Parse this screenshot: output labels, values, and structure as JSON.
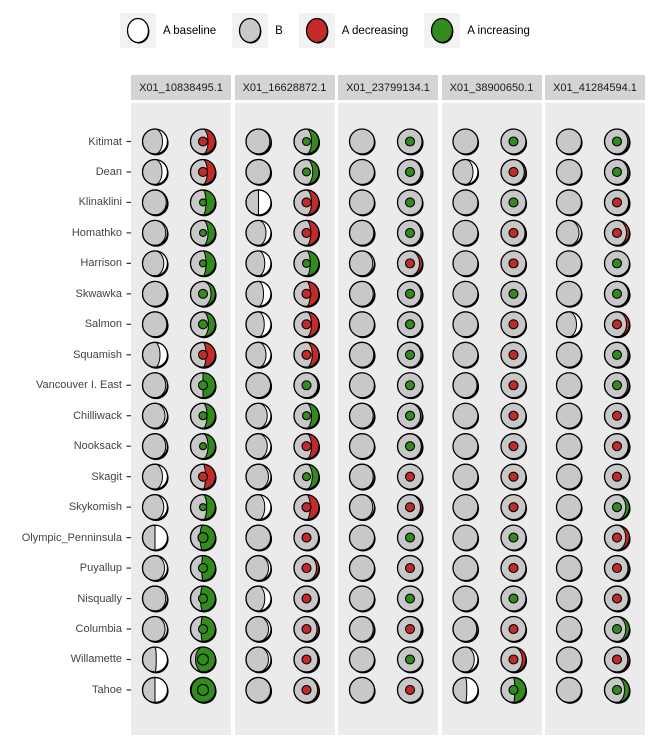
{
  "page": {
    "background": "#FFFFFF"
  },
  "legend": {
    "items": [
      {
        "label": "A baseline",
        "color": "#FFFFFF"
      },
      {
        "label": "B",
        "color": "#C8C8C8"
      },
      {
        "label": "A decreasing",
        "color": "#C32B2B"
      },
      {
        "label": "A increasing",
        "color": "#338A1E"
      }
    ]
  },
  "chart_data": {
    "type": "moon_grid",
    "description": "Faceted moon-chart matrix. Each row (river/region) x facet (locus) shows two moon glyphs: left glyph = proportion B (gray) filled from left over A-baseline (white); right glyph = proportion B (gray) over a colored remainder (red = A decreasing, green = A increasing) with a small center dot colored by direction.",
    "legend_position": "top",
    "facet_labels": [
      "X01_10838495.1",
      "X01_16628872.1",
      "X01_23799134.1",
      "X01_38900650.1",
      "X01_41284594.1"
    ],
    "row_labels": [
      "Kitimat",
      "Dean",
      "Klinaklini",
      "Homathko",
      "Harrison",
      "Skwawka",
      "Salmon",
      "Squamish",
      "Vancouver I. East",
      "Chilliwack",
      "Nooksack",
      "Skagit",
      "Skykomish",
      "Olympic_Penninsula",
      "Puyallup",
      "Nisqually",
      "Columbia",
      "Willamette",
      "Tahoe"
    ],
    "cell_encoding": [
      "gray_fraction_left_glyph",
      "colored_fraction_right_glyph",
      "direction_color (r=decreasing, g=increasing)",
      "center_dot_radius_px"
    ],
    "colors": {
      "baseline": "#FFFFFF",
      "b_gray": "#C8C8C8",
      "decreasing": "#C32B2B",
      "increasing": "#338A1E",
      "panel_bg": "#EBEBEB",
      "strip_bg": "#D4D4D4",
      "outline": "#000000"
    },
    "facets": [
      {
        "label": "X01_10838495.1",
        "cells": [
          [
            0.8,
            0.3,
            "r",
            4.5
          ],
          [
            0.78,
            0.33,
            "r",
            4.5
          ],
          [
            0.95,
            0.38,
            "g",
            3.5
          ],
          [
            0.93,
            0.3,
            "g",
            3.5
          ],
          [
            0.85,
            0.38,
            "g",
            3.5
          ],
          [
            0.97,
            0.18,
            "g",
            4.5
          ],
          [
            0.97,
            0.28,
            "g",
            4.5
          ],
          [
            0.7,
            0.38,
            "r",
            4.5
          ],
          [
            0.93,
            0.5,
            "g",
            4.5
          ],
          [
            0.9,
            0.34,
            "g",
            4.0
          ],
          [
            0.93,
            0.3,
            "g",
            3.5
          ],
          [
            0.8,
            0.4,
            "r",
            4.5
          ],
          [
            0.85,
            0.35,
            "g",
            3.5
          ],
          [
            0.5,
            0.62,
            "g",
            5.0
          ],
          [
            0.88,
            0.55,
            "g",
            4.5
          ],
          [
            0.93,
            0.6,
            "g",
            4.5
          ],
          [
            0.9,
            0.58,
            "g",
            4.5
          ],
          [
            0.55,
            0.8,
            "g",
            5.5
          ],
          [
            0.5,
            0.97,
            "g",
            5.5
          ]
        ]
      },
      {
        "label": "X01_16628872.1",
        "cells": [
          [
            0.95,
            0.3,
            "g",
            4.0
          ],
          [
            0.98,
            0.25,
            "g",
            4.0
          ],
          [
            0.5,
            0.3,
            "r",
            4.5
          ],
          [
            0.8,
            0.33,
            "r",
            4.5
          ],
          [
            0.75,
            0.35,
            "g",
            4.0
          ],
          [
            0.7,
            0.35,
            "r",
            4.5
          ],
          [
            0.73,
            0.3,
            "r",
            4.5
          ],
          [
            0.8,
            0.27,
            "r",
            4.5
          ],
          [
            0.98,
            0.05,
            "g",
            4.5
          ],
          [
            0.85,
            0.3,
            "g",
            4.0
          ],
          [
            0.85,
            0.3,
            "r",
            4.5
          ],
          [
            0.9,
            0.27,
            "g",
            4.0
          ],
          [
            0.75,
            0.35,
            "r",
            4.5
          ],
          [
            0.98,
            0.02,
            "r",
            4.5
          ],
          [
            0.9,
            0.1,
            "r",
            4.5
          ],
          [
            0.75,
            0.02,
            "r",
            4.5
          ],
          [
            0.9,
            0.08,
            "r",
            4.5
          ],
          [
            0.9,
            0.05,
            "r",
            4.5
          ],
          [
            0.98,
            0.06,
            "r",
            4.5
          ]
        ]
      },
      {
        "label": "X01_23799134.1",
        "cells": [
          [
            1.0,
            0.02,
            "g",
            4.5
          ],
          [
            1.0,
            0.06,
            "g",
            4.5
          ],
          [
            1.0,
            0.0,
            "g",
            4.5
          ],
          [
            0.97,
            0.06,
            "g",
            4.5
          ],
          [
            0.93,
            0.12,
            "r",
            4.5
          ],
          [
            0.95,
            0.06,
            "g",
            4.5
          ],
          [
            1.0,
            0.02,
            "g",
            4.5
          ],
          [
            0.97,
            0.06,
            "g",
            4.5
          ],
          [
            1.0,
            0.0,
            "g",
            4.5
          ],
          [
            0.95,
            0.08,
            "g",
            4.5
          ],
          [
            1.0,
            0.05,
            "g",
            4.5
          ],
          [
            0.95,
            0.0,
            "r",
            4.5
          ],
          [
            0.93,
            0.08,
            "r",
            4.5
          ],
          [
            1.0,
            0.0,
            "g",
            4.5
          ],
          [
            1.0,
            0.0,
            "r",
            4.5
          ],
          [
            1.0,
            0.0,
            "g",
            4.5
          ],
          [
            0.95,
            0.05,
            "r",
            4.5
          ],
          [
            1.0,
            0.0,
            "g",
            4.5
          ],
          [
            1.0,
            0.0,
            "r",
            4.5
          ]
        ]
      },
      {
        "label": "X01_38900650.1",
        "cells": [
          [
            1.0,
            0.0,
            "g",
            4.5
          ],
          [
            0.8,
            0.07,
            "r",
            4.5
          ],
          [
            1.0,
            0.0,
            "g",
            4.5
          ],
          [
            1.0,
            0.04,
            "r",
            4.5
          ],
          [
            1.0,
            0.0,
            "r",
            4.5
          ],
          [
            1.0,
            0.0,
            "g",
            4.5
          ],
          [
            1.0,
            0.0,
            "r",
            4.5
          ],
          [
            1.0,
            0.0,
            "r",
            4.5
          ],
          [
            0.96,
            0.0,
            "r",
            4.5
          ],
          [
            1.0,
            0.0,
            "r",
            4.5
          ],
          [
            1.0,
            0.0,
            "r",
            4.5
          ],
          [
            1.0,
            0.0,
            "r",
            4.5
          ],
          [
            1.0,
            0.0,
            "r",
            4.5
          ],
          [
            1.0,
            0.0,
            "g",
            4.5
          ],
          [
            1.0,
            0.0,
            "r",
            4.5
          ],
          [
            1.0,
            0.0,
            "g",
            4.5
          ],
          [
            0.95,
            0.0,
            "r",
            4.5
          ],
          [
            0.85,
            0.15,
            "r",
            4.5
          ],
          [
            0.55,
            0.45,
            "g",
            4.5
          ]
        ]
      },
      {
        "label": "X01_41284594.1",
        "cells": [
          [
            1.0,
            0.07,
            "g",
            4.5
          ],
          [
            1.0,
            0.07,
            "g",
            4.5
          ],
          [
            1.0,
            0.04,
            "r",
            4.5
          ],
          [
            0.9,
            0.12,
            "r",
            4.5
          ],
          [
            1.0,
            0.0,
            "g",
            4.5
          ],
          [
            1.0,
            0.05,
            "g",
            4.5
          ],
          [
            0.8,
            0.12,
            "r",
            4.5
          ],
          [
            1.0,
            0.06,
            "g",
            4.5
          ],
          [
            1.0,
            0.08,
            "g",
            4.5
          ],
          [
            1.0,
            0.05,
            "r",
            4.5
          ],
          [
            1.0,
            0.05,
            "r",
            4.5
          ],
          [
            1.0,
            0.0,
            "r",
            4.5
          ],
          [
            1.0,
            0.15,
            "g",
            4.5
          ],
          [
            1.0,
            0.15,
            "r",
            4.5
          ],
          [
            1.0,
            0.06,
            "r",
            4.5
          ],
          [
            1.0,
            0.05,
            "r",
            4.5
          ],
          [
            1.0,
            0.15,
            "g",
            4.5
          ],
          [
            1.0,
            0.07,
            "r",
            4.5
          ],
          [
            1.0,
            0.2,
            "g",
            4.5
          ]
        ]
      }
    ]
  }
}
